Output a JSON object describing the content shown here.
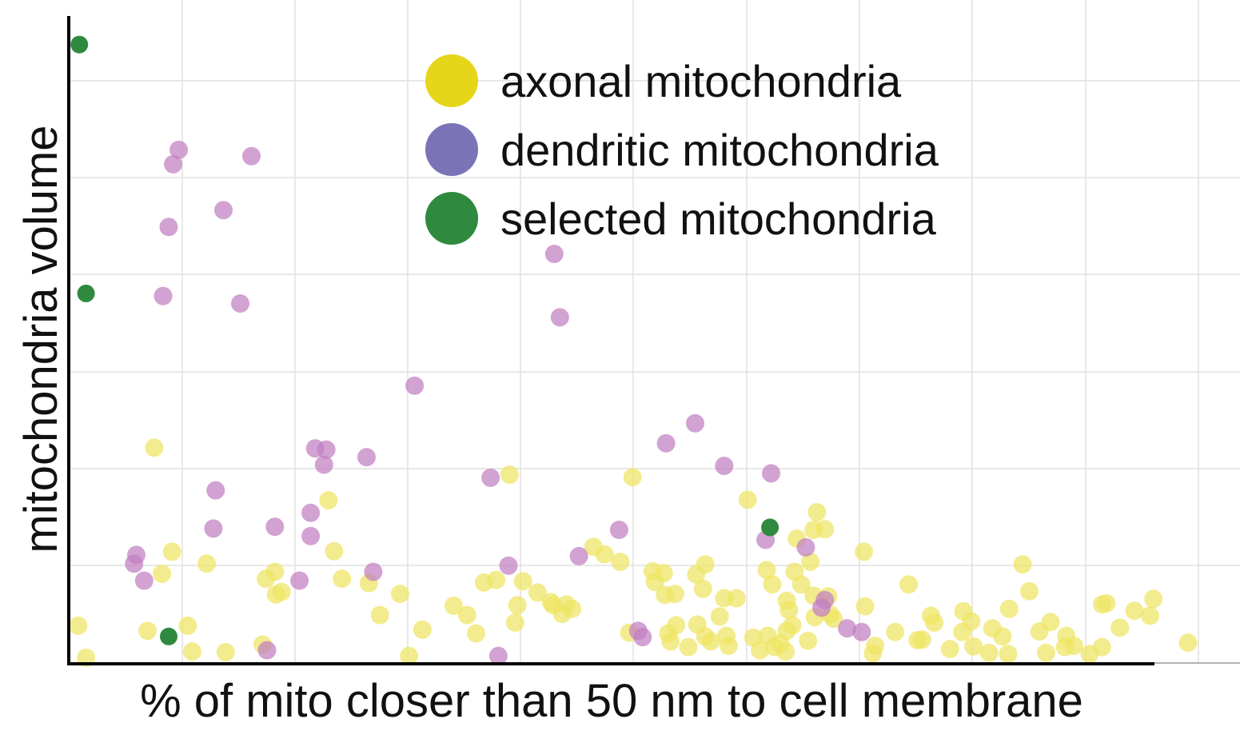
{
  "chart_data": {
    "type": "scatter",
    "title": "",
    "xlabel": "% of mito closer than 50 nm to cell membrane",
    "ylabel": "mitochondria volume",
    "xlim": [
      0,
      100
    ],
    "ylim": [
      0,
      100
    ],
    "grid": true,
    "legend_position": "top-right",
    "series": [
      {
        "name": "axonal mitochondria",
        "color": "#e6d619",
        "points": [
          [
            0.7,
            5.3
          ],
          [
            1.4,
            0.2
          ],
          [
            7.5,
            33.7
          ],
          [
            6.9,
            4.5
          ],
          [
            8.2,
            13.6
          ],
          [
            9.1,
            17.1
          ],
          [
            10.5,
            5.3
          ],
          [
            10.9,
            1.2
          ],
          [
            12.2,
            15.2
          ],
          [
            13.9,
            1.1
          ],
          [
            17.2,
            2.3
          ],
          [
            17.5,
            12.8
          ],
          [
            18.3,
            13.9
          ],
          [
            18.4,
            10.3
          ],
          [
            18.9,
            10.7
          ],
          [
            23.1,
            25.3
          ],
          [
            23.6,
            17.2
          ],
          [
            24.3,
            12.8
          ],
          [
            26.7,
            12.1
          ],
          [
            27.7,
            7.0
          ],
          [
            29.5,
            10.4
          ],
          [
            30.3,
            0.5
          ],
          [
            31.5,
            4.7
          ],
          [
            34.3,
            8.5
          ],
          [
            35.5,
            7.0
          ],
          [
            36.3,
            4.1
          ],
          [
            37.0,
            12.2
          ],
          [
            38.1,
            12.6
          ],
          [
            39.3,
            29.4
          ],
          [
            40.0,
            8.6
          ],
          [
            40.5,
            12.4
          ],
          [
            39.8,
            5.8
          ],
          [
            41.8,
            10.6
          ],
          [
            43.0,
            9.1
          ],
          [
            43.2,
            8.6
          ],
          [
            44.0,
            7.2
          ],
          [
            44.4,
            8.7
          ],
          [
            44.9,
            8.0
          ],
          [
            46.8,
            17.9
          ],
          [
            47.8,
            16.7
          ],
          [
            49.2,
            15.5
          ],
          [
            50.0,
            4.2
          ],
          [
            50.3,
            29.0
          ],
          [
            52.1,
            14.0
          ],
          [
            52.3,
            12.3
          ],
          [
            53.2,
            10.2
          ],
          [
            53.1,
            13.7
          ],
          [
            53.5,
            4.1
          ],
          [
            53.7,
            2.8
          ],
          [
            54.2,
            5.4
          ],
          [
            54.1,
            10.4
          ],
          [
            55.3,
            1.9
          ],
          [
            56.0,
            13.5
          ],
          [
            56.6,
            11.2
          ],
          [
            56.8,
            15.1
          ],
          [
            56.1,
            5.5
          ],
          [
            56.8,
            3.6
          ],
          [
            57.3,
            2.8
          ],
          [
            58.1,
            6.8
          ],
          [
            58.5,
            9.7
          ],
          [
            58.9,
            2.1
          ],
          [
            58.7,
            3.7
          ],
          [
            59.6,
            9.7
          ],
          [
            61.1,
            3.4
          ],
          [
            61.7,
            1.4
          ],
          [
            60.6,
            25.4
          ],
          [
            62.3,
            14.2
          ],
          [
            62.8,
            11.9
          ],
          [
            63.0,
            1.9
          ],
          [
            62.4,
            3.7
          ],
          [
            64.0,
            1.2
          ],
          [
            63.5,
            2.5
          ],
          [
            64.3,
            7.8
          ],
          [
            64.1,
            9.3
          ],
          [
            64.1,
            4.5
          ],
          [
            64.6,
            5.4
          ],
          [
            64.8,
            13.9
          ],
          [
            65.0,
            19.2
          ],
          [
            65.4,
            11.9
          ],
          [
            66.2,
            15.5
          ],
          [
            66.5,
            10.1
          ],
          [
            66.0,
            2.9
          ],
          [
            66.6,
            6.7
          ],
          [
            66.5,
            20.6
          ],
          [
            66.8,
            23.4
          ],
          [
            67.8,
            10.0
          ],
          [
            67.5,
            20.7
          ],
          [
            68.0,
            7.1
          ],
          [
            68.3,
            6.4
          ],
          [
            71.1,
            8.4
          ],
          [
            71.0,
            17.1
          ],
          [
            71.8,
            0.9
          ],
          [
            72.0,
            2.1
          ],
          [
            73.8,
            4.3
          ],
          [
            75.0,
            11.9
          ],
          [
            75.8,
            3.0
          ],
          [
            76.2,
            3.1
          ],
          [
            77.0,
            6.9
          ],
          [
            77.3,
            5.8
          ],
          [
            78.7,
            1.6
          ],
          [
            79.8,
            4.3
          ],
          [
            79.9,
            7.6
          ],
          [
            80.6,
            6.0
          ],
          [
            80.8,
            2.0
          ],
          [
            82.2,
            1.0
          ],
          [
            82.5,
            4.9
          ],
          [
            83.4,
            3.6
          ],
          [
            83.9,
            0.8
          ],
          [
            84.0,
            8.0
          ],
          [
            85.2,
            15.1
          ],
          [
            85.8,
            10.8
          ],
          [
            86.7,
            4.4
          ],
          [
            87.3,
            1.0
          ],
          [
            87.7,
            5.9
          ],
          [
            89.1,
            3.7
          ],
          [
            89.0,
            1.9
          ],
          [
            89.8,
            2.1
          ],
          [
            91.2,
            0.8
          ],
          [
            92.3,
            1.9
          ],
          [
            92.3,
            8.7
          ],
          [
            92.7,
            8.9
          ],
          [
            93.9,
            5.0
          ],
          [
            95.2,
            7.7
          ],
          [
            96.6,
            6.9
          ],
          [
            96.9,
            9.6
          ],
          [
            100.0,
            2.6
          ]
        ]
      },
      {
        "name": "dendritic mitochondria",
        "color": "#b967b9",
        "points": [
          [
            5.7,
            15.2
          ],
          [
            5.9,
            16.6
          ],
          [
            6.6,
            12.5
          ],
          [
            8.3,
            57.9
          ],
          [
            8.8,
            68.9
          ],
          [
            9.2,
            78.9
          ],
          [
            9.7,
            81.2
          ],
          [
            12.8,
            20.8
          ],
          [
            13.0,
            26.9
          ],
          [
            13.7,
            71.6
          ],
          [
            15.2,
            56.7
          ],
          [
            16.2,
            80.2
          ],
          [
            17.6,
            1.4
          ],
          [
            18.3,
            21.1
          ],
          [
            20.5,
            12.5
          ],
          [
            21.5,
            23.3
          ],
          [
            21.5,
            19.6
          ],
          [
            21.9,
            33.6
          ],
          [
            22.7,
            31.0
          ],
          [
            22.9,
            33.4
          ],
          [
            26.5,
            32.2
          ],
          [
            27.1,
            13.9
          ],
          [
            30.8,
            43.6
          ],
          [
            37.6,
            28.9
          ],
          [
            38.3,
            0.5
          ],
          [
            39.2,
            14.9
          ],
          [
            43.3,
            64.6
          ],
          [
            43.8,
            54.5
          ],
          [
            45.5,
            16.4
          ],
          [
            49.1,
            20.6
          ],
          [
            50.8,
            4.5
          ],
          [
            51.2,
            3.5
          ],
          [
            53.3,
            34.4
          ],
          [
            55.9,
            37.6
          ],
          [
            58.5,
            30.8
          ],
          [
            62.2,
            19.0
          ],
          [
            62.7,
            29.6
          ],
          [
            65.8,
            17.8
          ],
          [
            67.2,
            8.2
          ],
          [
            67.5,
            9.4
          ],
          [
            69.5,
            4.9
          ],
          [
            70.8,
            4.3
          ]
        ]
      },
      {
        "name": "selected mitochondria",
        "color": "#2f8a3f",
        "points": [
          [
            0.8,
            98.0
          ],
          [
            1.4,
            58.3
          ],
          [
            8.8,
            3.6
          ],
          [
            62.6,
            21.0
          ]
        ]
      }
    ]
  }
}
